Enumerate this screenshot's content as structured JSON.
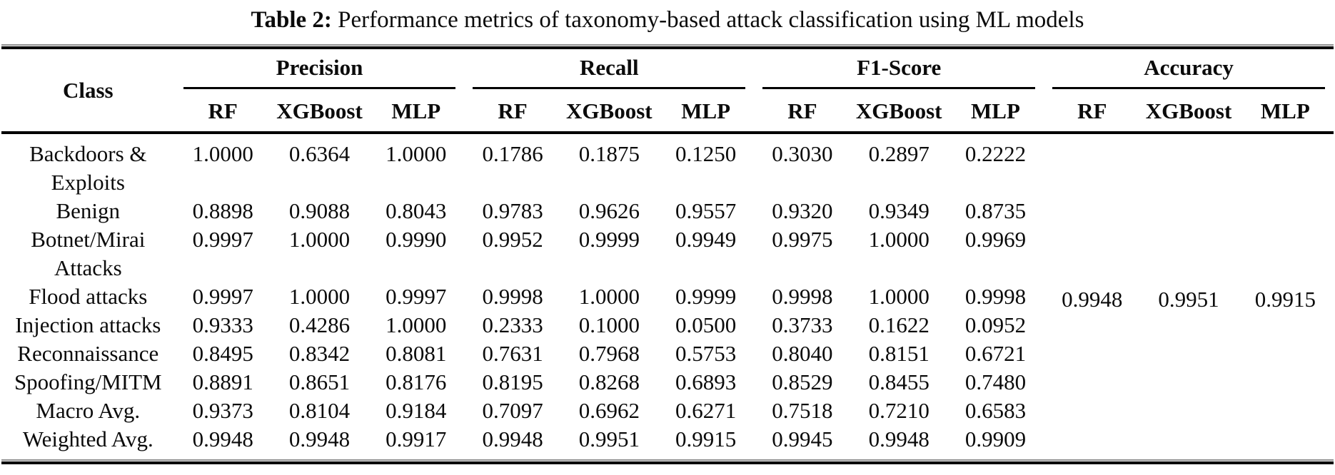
{
  "caption": {
    "label": "Table 2:",
    "text": "Performance metrics of taxonomy-based attack classification using ML models"
  },
  "table": {
    "class_header": "Class",
    "groups": [
      {
        "label": "Precision",
        "cols": [
          "RF",
          "XGBoost",
          "MLP"
        ]
      },
      {
        "label": "Recall",
        "cols": [
          "RF",
          "XGBoost",
          "MLP"
        ]
      },
      {
        "label": "F1-Score",
        "cols": [
          "RF",
          "XGBoost",
          "MLP"
        ]
      },
      {
        "label": "Accuracy",
        "cols": [
          "RF",
          "XGBoost",
          "MLP"
        ]
      }
    ],
    "rows": [
      {
        "class": "Backdoors & Exploits",
        "values": [
          "1.0000",
          "0.6364",
          "1.0000",
          "0.1786",
          "0.1875",
          "0.1250",
          "0.3030",
          "0.2897",
          "0.2222"
        ]
      },
      {
        "class": "Benign",
        "values": [
          "0.8898",
          "0.9088",
          "0.8043",
          "0.9783",
          "0.9626",
          "0.9557",
          "0.9320",
          "0.9349",
          "0.8735"
        ]
      },
      {
        "class": "Botnet/Mirai Attacks",
        "values": [
          "0.9997",
          "1.0000",
          "0.9990",
          "0.9952",
          "0.9999",
          "0.9949",
          "0.9975",
          "1.0000",
          "0.9969"
        ]
      },
      {
        "class": "Flood attacks",
        "values": [
          "0.9997",
          "1.0000",
          "0.9997",
          "0.9998",
          "1.0000",
          "0.9999",
          "0.9998",
          "1.0000",
          "0.9998"
        ]
      },
      {
        "class": "Injection attacks",
        "values": [
          "0.9333",
          "0.4286",
          "1.0000",
          "0.2333",
          "0.1000",
          "0.0500",
          "0.3733",
          "0.1622",
          "0.0952"
        ]
      },
      {
        "class": "Reconnaissance",
        "values": [
          "0.8495",
          "0.8342",
          "0.8081",
          "0.7631",
          "0.7968",
          "0.5753",
          "0.8040",
          "0.8151",
          "0.6721"
        ]
      },
      {
        "class": "Spoofing/MITM",
        "values": [
          "0.8891",
          "0.8651",
          "0.8176",
          "0.8195",
          "0.8268",
          "0.6893",
          "0.8529",
          "0.8455",
          "0.7480"
        ]
      },
      {
        "class": "Macro Avg.",
        "values": [
          "0.9373",
          "0.8104",
          "0.9184",
          "0.7097",
          "0.6962",
          "0.6271",
          "0.7518",
          "0.7210",
          "0.6583"
        ]
      },
      {
        "class": "Weighted Avg.",
        "values": [
          "0.9948",
          "0.9948",
          "0.9917",
          "0.9948",
          "0.9951",
          "0.9915",
          "0.9945",
          "0.9948",
          "0.9909"
        ]
      }
    ],
    "accuracy_values": [
      "0.9948",
      "0.9951",
      "0.9915"
    ]
  }
}
